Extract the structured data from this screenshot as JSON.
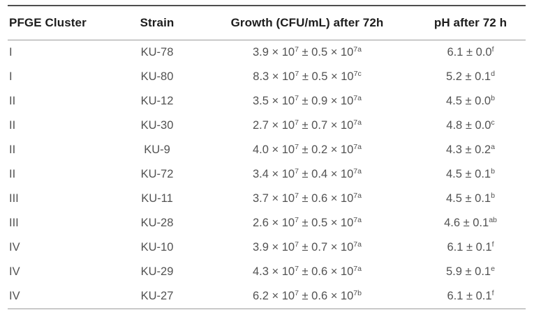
{
  "table": {
    "columns": [
      {
        "label": "PFGE Cluster",
        "align": "left"
      },
      {
        "label": "Strain",
        "align": "center"
      },
      {
        "label": "Growth (CFU/mL) after 72h",
        "align": "center"
      },
      {
        "label": "pH after 72 h",
        "align": "center"
      }
    ],
    "notation": {
      "multiply_sign": "×",
      "plus_minus_sign": "±",
      "base": "10"
    },
    "rows": [
      {
        "cluster": "I",
        "strain": "KU-78",
        "growth": {
          "mean": "3.9",
          "sd": "0.5",
          "exp": "7",
          "sup": "a"
        },
        "ph": {
          "mean": "6.1",
          "sd": "0.0",
          "sup": "f"
        }
      },
      {
        "cluster": "I",
        "strain": "KU-80",
        "growth": {
          "mean": "8.3",
          "sd": "0.5",
          "exp": "7",
          "sup": "c"
        },
        "ph": {
          "mean": "5.2",
          "sd": "0.1",
          "sup": "d"
        }
      },
      {
        "cluster": "II",
        "strain": "KU-12",
        "growth": {
          "mean": "3.5",
          "sd": "0.9",
          "exp": "7",
          "sup": "a"
        },
        "ph": {
          "mean": "4.5",
          "sd": "0.0",
          "sup": "b"
        }
      },
      {
        "cluster": "II",
        "strain": "KU-30",
        "growth": {
          "mean": "2.7",
          "sd": "0.7",
          "exp": "7",
          "sup": "a"
        },
        "ph": {
          "mean": "4.8",
          "sd": "0.0",
          "sup": "c"
        }
      },
      {
        "cluster": "II",
        "strain": "KU-9",
        "growth": {
          "mean": "4.0",
          "sd": "0.2",
          "exp": "7",
          "sup": "a"
        },
        "ph": {
          "mean": "4.3",
          "sd": "0.2",
          "sup": "a"
        }
      },
      {
        "cluster": "II",
        "strain": "KU-72",
        "growth": {
          "mean": "3.4",
          "sd": "0.4",
          "exp": "7",
          "sup": "a"
        },
        "ph": {
          "mean": "4.5",
          "sd": "0.1",
          "sup": "b"
        }
      },
      {
        "cluster": "III",
        "strain": "KU-11",
        "growth": {
          "mean": "3.7",
          "sd": "0.6",
          "exp": "7",
          "sup": "a"
        },
        "ph": {
          "mean": "4.5",
          "sd": "0.1",
          "sup": "b"
        }
      },
      {
        "cluster": "III",
        "strain": "KU-28",
        "growth": {
          "mean": "2.6",
          "sd": "0.5",
          "exp": "7",
          "sup": "a"
        },
        "ph": {
          "mean": "4.6",
          "sd": "0.1",
          "sup": "ab"
        }
      },
      {
        "cluster": "IV",
        "strain": "KU-10",
        "growth": {
          "mean": "3.9",
          "sd": "0.7",
          "exp": "7",
          "sup": "a"
        },
        "ph": {
          "mean": "6.1",
          "sd": "0.1",
          "sup": "f"
        }
      },
      {
        "cluster": "IV",
        "strain": "KU-29",
        "growth": {
          "mean": "4.3",
          "sd": "0.6",
          "exp": "7",
          "sup": "a"
        },
        "ph": {
          "mean": "5.9",
          "sd": "0.1",
          "sup": "e"
        }
      },
      {
        "cluster": "IV",
        "strain": "KU-27",
        "growth": {
          "mean": "6.2",
          "sd": "0.6",
          "exp": "7",
          "sup": "b"
        },
        "ph": {
          "mean": "6.1",
          "sd": "0.1",
          "sup": "f"
        }
      }
    ]
  },
  "colors": {
    "header_text": "#1d1d1d",
    "body_text": "#525252",
    "top_rule": "#4e4e4e",
    "thin_rule": "#9b9b9b",
    "background": "#ffffff"
  }
}
